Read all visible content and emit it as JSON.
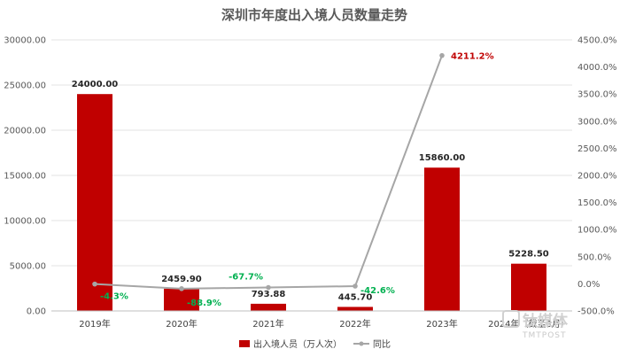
{
  "chart_data": {
    "type": "bar",
    "title": "深圳市年度出入境人员数量走势",
    "categories": [
      "2019年",
      "2020年",
      "2021年",
      "2022年",
      "2023年",
      "2024年（截至3月）"
    ],
    "series": [
      {
        "name": "出入境人员（万人次）",
        "type": "bar",
        "axis": "left",
        "values": [
          24000.0,
          2459.9,
          793.88,
          445.7,
          15860.0,
          5228.5
        ],
        "labels": [
          "24000.00",
          "2459.90",
          "793.88",
          "445.70",
          "15860.00",
          "5228.50"
        ]
      },
      {
        "name": "同比",
        "type": "line",
        "axis": "right",
        "values": [
          -4.3,
          -88.9,
          -67.7,
          -42.6,
          4211.2,
          null
        ],
        "labels": [
          "-4.3%",
          "-88.9%",
          "-67.7%",
          "-42.6%",
          "4211.2%",
          ""
        ]
      }
    ],
    "y_left": {
      "ylim": [
        0,
        30000
      ],
      "ticks": [
        "0.00",
        "5000.00",
        "10000.00",
        "15000.00",
        "20000.00",
        "25000.00",
        "30000.00"
      ]
    },
    "y_right": {
      "ylim": [
        -500,
        4500
      ],
      "ticks": [
        "-500.0%",
        "0.0%",
        "500.0%",
        "1000.0%",
        "1500.0%",
        "2000.0%",
        "2500.0%",
        "3000.0%",
        "3500.0%",
        "4000.0%",
        "4500.0%"
      ]
    },
    "grid": true,
    "legend": "bottom",
    "colors": {
      "bar": "#c00000",
      "line": "#a6a6a6",
      "positive_label": "#c00000",
      "negative_label": "#00b050"
    }
  },
  "watermark": {
    "text": "钛媒体",
    "sub": "TMTPOST"
  }
}
